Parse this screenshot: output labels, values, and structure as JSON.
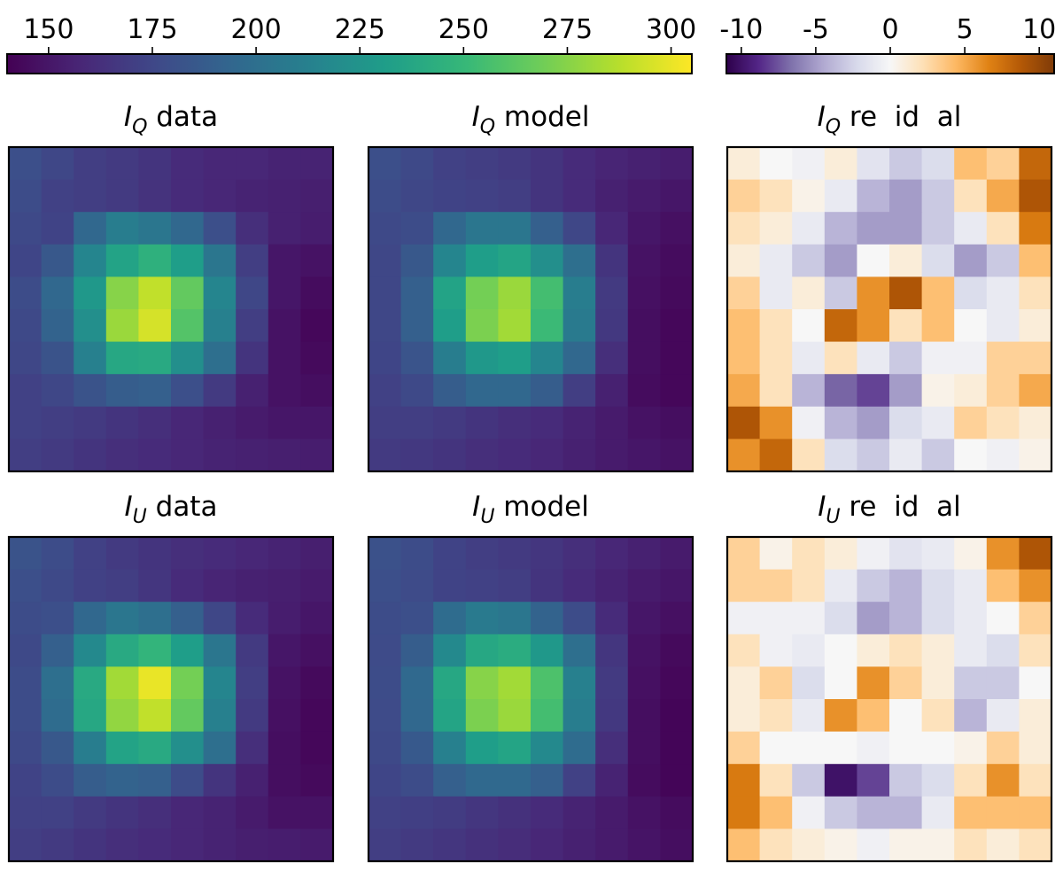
{
  "chart_data": {
    "type": "heatmap",
    "colorbars": [
      {
        "name": "intensity",
        "cmap": "viridis",
        "range": [
          140,
          305
        ],
        "ticks": [
          150,
          175,
          200,
          225,
          250,
          275,
          300
        ],
        "tick_labels": [
          "150",
          "175",
          "200",
          "225",
          "250",
          "275",
          "300"
        ]
      },
      {
        "name": "residual",
        "cmap": "PuOr_r",
        "range": [
          -11,
          11
        ],
        "ticks": [
          -10,
          -5,
          0,
          5,
          10
        ],
        "tick_labels": [
          "-10",
          "-5",
          "0",
          "5",
          "10"
        ]
      }
    ],
    "panels": [
      {
        "id": "iq-data",
        "title_sym": "I",
        "title_sub": "Q",
        "title_rest": " data",
        "colorbar": "intensity",
        "values": [
          [
            180,
            175,
            170,
            168,
            165,
            160,
            158,
            158,
            156,
            156
          ],
          [
            178,
            172,
            170,
            168,
            164,
            160,
            158,
            156,
            155,
            154
          ],
          [
            176,
            173,
            195,
            210,
            205,
            195,
            180,
            162,
            155,
            153
          ],
          [
            174,
            185,
            215,
            235,
            245,
            232,
            205,
            170,
            150,
            148
          ],
          [
            178,
            195,
            228,
            275,
            290,
            265,
            215,
            175,
            150,
            145
          ],
          [
            176,
            192,
            222,
            280,
            295,
            260,
            212,
            170,
            148,
            143
          ],
          [
            175,
            182,
            212,
            238,
            240,
            222,
            200,
            165,
            148,
            144
          ],
          [
            172,
            175,
            182,
            188,
            190,
            180,
            168,
            155,
            148,
            146
          ],
          [
            172,
            170,
            168,
            165,
            162,
            158,
            155,
            152,
            150,
            150
          ],
          [
            170,
            168,
            165,
            162,
            160,
            158,
            156,
            155,
            154,
            153
          ]
        ]
      },
      {
        "id": "iq-model",
        "title_sym": "I",
        "title_sub": "Q",
        "title_rest": " model",
        "colorbar": "intensity",
        "values": [
          [
            180,
            176,
            172,
            170,
            168,
            165,
            160,
            157,
            155,
            153
          ],
          [
            178,
            175,
            173,
            172,
            170,
            165,
            160,
            155,
            152,
            150
          ],
          [
            176,
            178,
            195,
            205,
            205,
            190,
            175,
            158,
            150,
            147
          ],
          [
            175,
            185,
            215,
            232,
            236,
            222,
            200,
            165,
            148,
            145
          ],
          [
            175,
            190,
            235,
            270,
            280,
            255,
            210,
            168,
            147,
            144
          ],
          [
            175,
            190,
            232,
            272,
            282,
            252,
            208,
            167,
            146,
            143
          ],
          [
            174,
            183,
            210,
            228,
            232,
            215,
            195,
            162,
            146,
            143
          ],
          [
            172,
            176,
            188,
            195,
            195,
            188,
            170,
            155,
            145,
            143
          ],
          [
            170,
            170,
            168,
            165,
            162,
            160,
            156,
            152,
            148,
            146
          ],
          [
            168,
            167,
            165,
            162,
            160,
            158,
            155,
            152,
            150,
            148
          ]
        ]
      },
      {
        "id": "iq-residual",
        "title_sym": "I",
        "title_sub": "Q",
        "title_rest": " re  id  al",
        "colorbar": "residual",
        "values": [
          [
            1,
            0,
            -0.5,
            1,
            -1.5,
            -3,
            -2,
            4,
            3,
            8
          ],
          [
            3,
            2,
            0.5,
            -1,
            -4,
            -5,
            -3,
            2,
            5,
            9
          ],
          [
            2,
            1,
            -1,
            -4,
            -5,
            -5,
            -3,
            -1,
            2,
            7
          ],
          [
            1,
            -1,
            -3,
            -5,
            0,
            1,
            -2,
            -5,
            -3,
            4
          ],
          [
            3,
            -1,
            1,
            -3,
            6,
            9,
            4,
            -2,
            -1,
            2
          ],
          [
            4,
            2,
            0,
            8,
            6,
            2,
            4,
            0,
            -1,
            1
          ],
          [
            4,
            2,
            -1,
            2,
            -1,
            -3,
            -0.5,
            -0.5,
            3,
            3
          ],
          [
            5,
            2,
            -4,
            -7,
            -8,
            -5,
            0.5,
            1,
            3,
            5
          ],
          [
            9,
            6,
            -0.5,
            -4,
            -5,
            -2,
            -1,
            3,
            2,
            1
          ],
          [
            6,
            8,
            2,
            -2,
            -3,
            -1,
            -3,
            0,
            -0.5,
            0.5
          ]
        ]
      },
      {
        "id": "iu-data",
        "title_sym": "I",
        "title_sub": "U",
        "title_rest": " data",
        "colorbar": "intensity",
        "values": [
          [
            182,
            178,
            172,
            168,
            165,
            162,
            160,
            158,
            156,
            154
          ],
          [
            180,
            176,
            172,
            170,
            166,
            160,
            157,
            155,
            154,
            152
          ],
          [
            178,
            180,
            195,
            205,
            200,
            190,
            175,
            160,
            153,
            150
          ],
          [
            176,
            190,
            218,
            240,
            248,
            232,
            205,
            168,
            150,
            147
          ],
          [
            178,
            200,
            240,
            282,
            300,
            270,
            215,
            170,
            148,
            144
          ],
          [
            178,
            198,
            238,
            278,
            290,
            265,
            212,
            168,
            147,
            143
          ],
          [
            176,
            185,
            210,
            235,
            240,
            222,
            200,
            162,
            146,
            143
          ],
          [
            173,
            178,
            188,
            192,
            190,
            178,
            165,
            155,
            146,
            144
          ],
          [
            172,
            172,
            168,
            165,
            162,
            158,
            156,
            152,
            148,
            148
          ],
          [
            170,
            168,
            165,
            162,
            160,
            158,
            156,
            154,
            153,
            152
          ]
        ]
      },
      {
        "id": "iu-model",
        "title_sym": "I",
        "title_sub": "U",
        "title_rest": " model",
        "colorbar": "intensity",
        "values": [
          [
            181,
            178,
            173,
            170,
            168,
            166,
            162,
            158,
            155,
            152
          ],
          [
            180,
            177,
            173,
            172,
            170,
            165,
            160,
            156,
            152,
            150
          ],
          [
            178,
            180,
            198,
            208,
            205,
            192,
            178,
            160,
            150,
            147
          ],
          [
            177,
            188,
            218,
            238,
            242,
            228,
            200,
            166,
            148,
            144
          ],
          [
            178,
            196,
            238,
            275,
            282,
            258,
            212,
            168,
            147,
            143
          ],
          [
            177,
            195,
            236,
            272,
            280,
            255,
            210,
            167,
            146,
            142
          ],
          [
            176,
            186,
            212,
            232,
            236,
            218,
            198,
            162,
            146,
            142
          ],
          [
            174,
            178,
            190,
            196,
            196,
            190,
            172,
            156,
            145,
            142
          ],
          [
            172,
            171,
            169,
            166,
            163,
            160,
            156,
            152,
            148,
            145
          ],
          [
            170,
            168,
            166,
            163,
            161,
            158,
            155,
            152,
            149,
            146
          ]
        ]
      },
      {
        "id": "iu-residual",
        "title_sym": "I",
        "title_sub": "U",
        "title_rest": " re  id  al",
        "colorbar": "residual",
        "values": [
          [
            3,
            0.5,
            2,
            1,
            -0.5,
            -1.5,
            -1,
            0.5,
            6,
            9
          ],
          [
            3,
            3,
            2,
            -1,
            -3,
            -4,
            -2,
            -1,
            4,
            6
          ],
          [
            -0.5,
            -0.5,
            -0.5,
            -2,
            -5,
            -4,
            -2,
            -1,
            0,
            3
          ],
          [
            2,
            -0.5,
            -1,
            0,
            1,
            2,
            1,
            -1,
            -2,
            2
          ],
          [
            1,
            3,
            -2,
            0,
            6,
            3,
            1,
            -3,
            -3,
            0
          ],
          [
            1,
            2,
            -1,
            6,
            4,
            0,
            2,
            -4,
            -1,
            1
          ],
          [
            3,
            0,
            0,
            0,
            -0.5,
            0,
            0,
            0.5,
            3,
            1
          ],
          [
            7,
            2,
            -3,
            -10,
            -8,
            -3,
            -2,
            2,
            6,
            2
          ],
          [
            7,
            4,
            -0.5,
            -3,
            -4,
            -4,
            -1,
            4,
            4,
            4
          ],
          [
            4,
            2,
            1,
            0.5,
            -0.5,
            0.5,
            0.5,
            2,
            1,
            2
          ]
        ]
      }
    ]
  }
}
